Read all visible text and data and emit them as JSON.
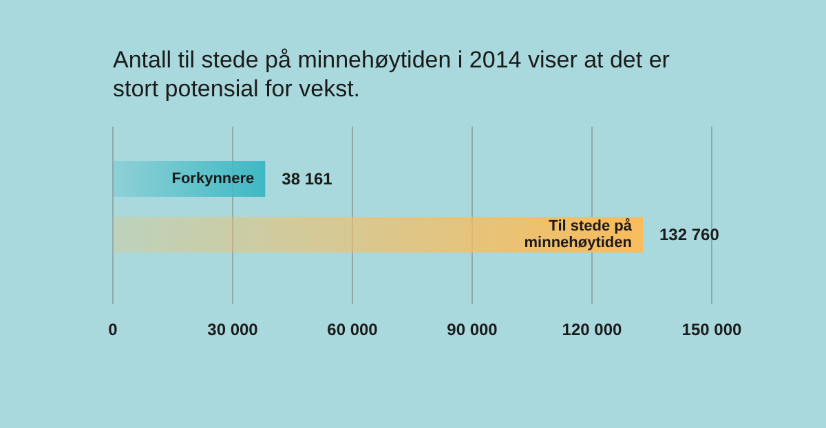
{
  "chart_data": {
    "type": "bar",
    "orientation": "horizontal",
    "title": "Antall til stede på minnehøytiden i 2014 viser at det er stort potensial for vekst.",
    "categories": [
      "Forkynnere",
      "Til stede på minnehøytiden"
    ],
    "values": [
      38161,
      132760
    ],
    "colors": [
      "#3fb8c4",
      "#f9bc5c"
    ],
    "value_labels": [
      "38 161",
      "132 760"
    ],
    "xlim": [
      0,
      150000
    ],
    "xticks": [
      0,
      {
        "value": 30000,
        "label": "30 000"
      },
      {
        "value": 60000,
        "label": "60 000"
      },
      {
        "value": 90000,
        "label": "90 000"
      },
      {
        "value": 120000,
        "label": "120 000"
      },
      {
        "value": 150000,
        "label": "150 000"
      }
    ],
    "grid": "x",
    "legend": false
  }
}
